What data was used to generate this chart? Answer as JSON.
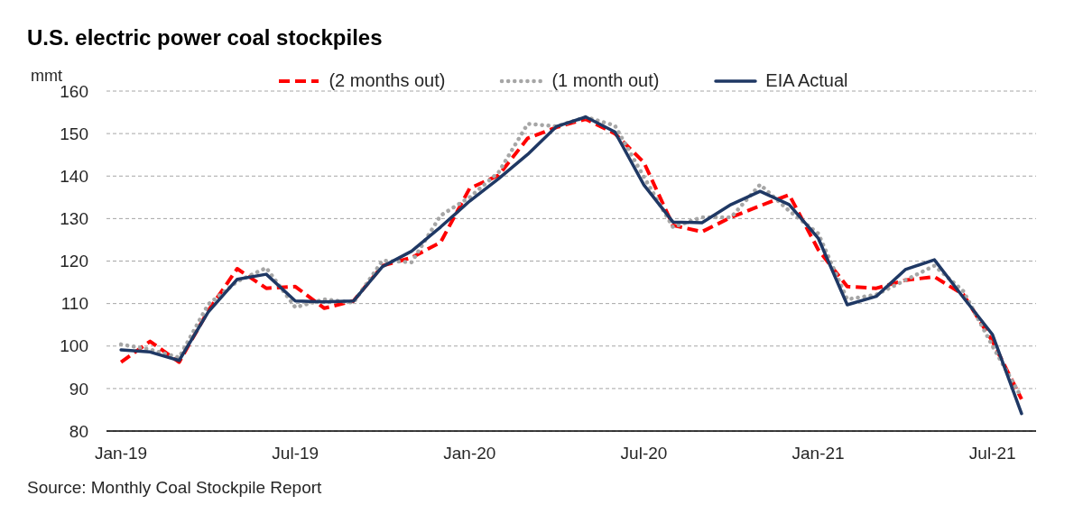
{
  "chart_data": {
    "type": "line",
    "title": "U.S. electric power coal stockpiles",
    "ylabel": "mmt",
    "annotations": [
      "Source: Monthly Coal Stockpile Report"
    ],
    "x": [
      "2019-01",
      "2019-02",
      "2019-03",
      "2019-04",
      "2019-05",
      "2019-06",
      "2019-07",
      "2019-08",
      "2019-09",
      "2019-10",
      "2019-11",
      "2019-12",
      "2020-01",
      "2020-02",
      "2020-03",
      "2020-04",
      "2020-05",
      "2020-06",
      "2020-07",
      "2020-08",
      "2020-09",
      "2020-10",
      "2020-11",
      "2020-12",
      "2021-01",
      "2021-02",
      "2021-03",
      "2021-04",
      "2021-05",
      "2021-06",
      "2021-07",
      "2021-08"
    ],
    "xlim": [
      "2018-12-16",
      "2021-08-16"
    ],
    "xticks": [
      {
        "value": "2019-01",
        "label": "Jan-19"
      },
      {
        "value": "2019-07",
        "label": "Jul-19"
      },
      {
        "value": "2020-01",
        "label": "Jan-20"
      },
      {
        "value": "2020-07",
        "label": "Jul-20"
      },
      {
        "value": "2021-01",
        "label": "Jan-21"
      },
      {
        "value": "2021-07",
        "label": "Jul-21"
      }
    ],
    "ylim": [
      80,
      160
    ],
    "yticks": [
      80,
      90,
      100,
      110,
      120,
      130,
      140,
      150,
      160
    ],
    "grid": "y",
    "legend": "top",
    "series": [
      {
        "name": "(2 months out)",
        "color": "#ff0000",
        "line_style": "dashed",
        "values": [
          96.2,
          101.1,
          96.2,
          108.3,
          118.2,
          113.6,
          114.0,
          108.9,
          110.6,
          118.9,
          120.8,
          124.4,
          137.1,
          140.2,
          148.9,
          151.5,
          153.4,
          150.0,
          143.2,
          128.4,
          126.9,
          130.3,
          133.0,
          135.6,
          122.7,
          114.0,
          113.6,
          115.5,
          116.3,
          112.1,
          101.1,
          87.5
        ]
      },
      {
        "name": "(1 month out)",
        "color": "#a6a6a6",
        "line_style": "dotted",
        "values": [
          100.4,
          99.2,
          97.3,
          109.8,
          115.2,
          118.4,
          109.1,
          111.0,
          110.2,
          120.1,
          119.7,
          130.7,
          135.0,
          140.9,
          152.3,
          151.7,
          153.9,
          151.9,
          139.8,
          128.0,
          130.3,
          130.3,
          138.0,
          131.8,
          126.5,
          111.0,
          112.1,
          115.5,
          118.9,
          112.9,
          100.0,
          87.9
        ]
      },
      {
        "name": "EIA Actual",
        "color": "#1f3864",
        "line_style": "solid",
        "values": [
          99.1,
          98.6,
          96.6,
          108.0,
          115.7,
          116.9,
          110.6,
          110.4,
          110.6,
          118.7,
          122.3,
          128.0,
          134.1,
          139.4,
          145.1,
          151.7,
          153.9,
          150.4,
          137.9,
          129.2,
          129.0,
          133.3,
          136.4,
          133.3,
          125.4,
          109.7,
          111.7,
          118.0,
          120.3,
          111.4,
          102.7,
          84.1
        ]
      }
    ]
  }
}
